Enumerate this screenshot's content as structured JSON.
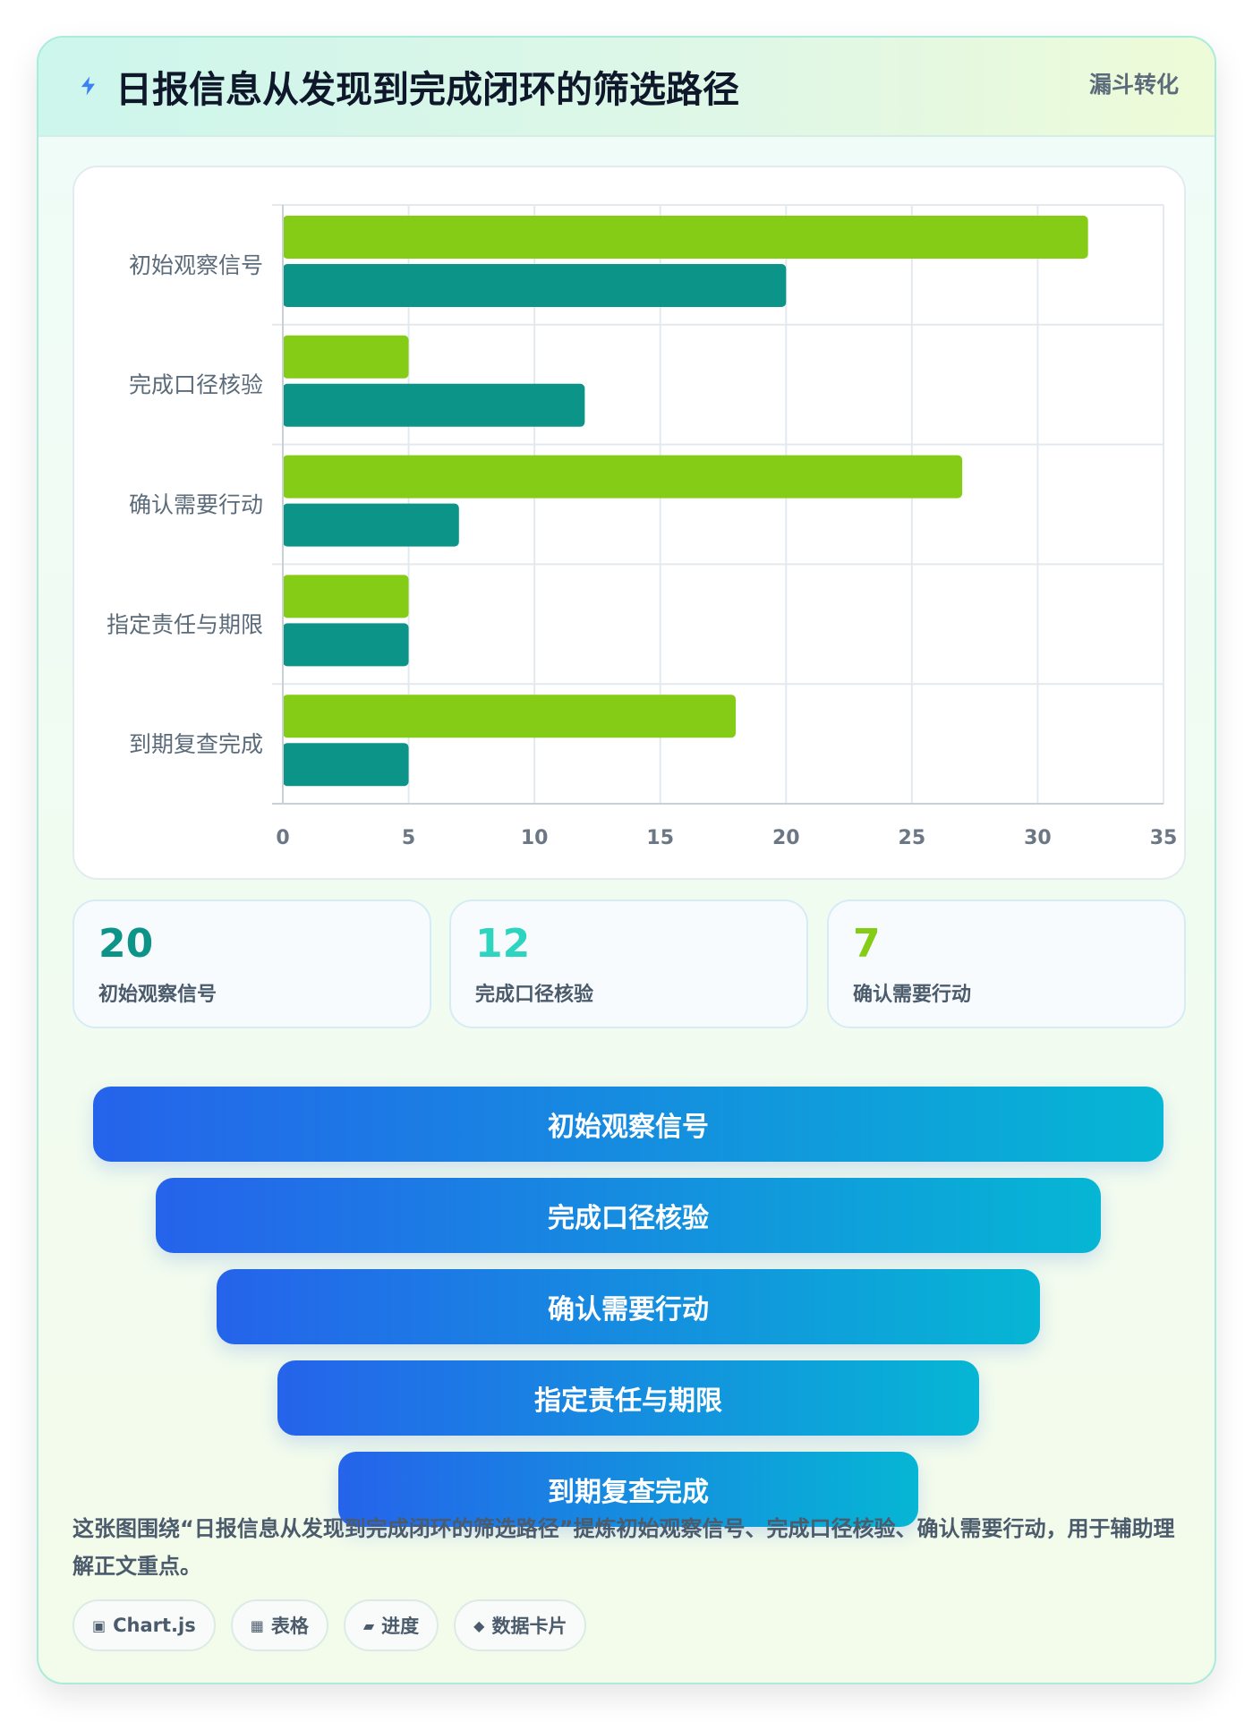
{
  "header": {
    "title": "日报信息从发现到完成闭环的筛选路径",
    "tag": "漏斗转化",
    "icon": "lightning-icon"
  },
  "chart_data": {
    "type": "bar",
    "orientation": "horizontal",
    "categories": [
      "初始观察信号",
      "完成口径核验",
      "确认需要行动",
      "指定责任与期限",
      "到期复查完成"
    ],
    "series": [
      {
        "values": [
          32,
          5,
          27,
          5,
          18
        ],
        "color": "#84cc16"
      },
      {
        "values": [
          20,
          12,
          7,
          5,
          5
        ],
        "color": "#0d9488"
      }
    ],
    "xlim": [
      0,
      35
    ],
    "xticks": [
      0,
      5,
      10,
      15,
      20,
      25,
      30,
      35
    ],
    "grid": true,
    "legend": "none"
  },
  "stats": [
    {
      "value": "20",
      "label": "初始观察信号",
      "color": "#0d9488"
    },
    {
      "value": "12",
      "label": "完成口径核验",
      "color": "#2dd4bf"
    },
    {
      "value": "7",
      "label": "确认需要行动",
      "color": "#84cc16"
    }
  ],
  "funnel": {
    "steps": [
      "初始观察信号",
      "完成口径核验",
      "确认需要行动",
      "指定责任与期限",
      "到期复查完成"
    ]
  },
  "description": "这张图围绕“日报信息从发现到完成闭环的筛选路径”提炼初始观察信号、完成口径核验、确认需要行动，用于辅助理解正文重点。",
  "chips": [
    {
      "icon": "▣",
      "label": "Chart.js"
    },
    {
      "icon": "▦",
      "label": "表格"
    },
    {
      "icon": "▰",
      "label": "进度"
    },
    {
      "icon": "◆",
      "label": "数据卡片"
    }
  ]
}
